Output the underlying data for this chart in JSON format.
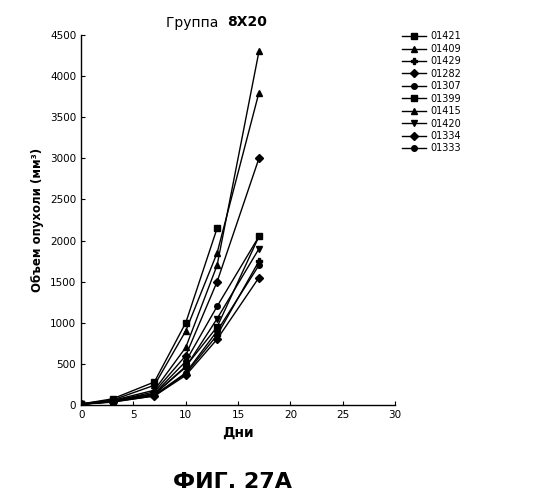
{
  "title_normal": "Группа  ",
  "title_bold": "8X20",
  "xlabel": "Дни",
  "ylabel": "Объем опухоли (мм³)",
  "fig_label": "ФИГ. 27А",
  "xlim": [
    0,
    30
  ],
  "ylim": [
    0,
    4500
  ],
  "yticks": [
    0,
    500,
    1000,
    1500,
    2000,
    2500,
    3000,
    3500,
    4000,
    4500
  ],
  "xticks": [
    0,
    5,
    10,
    15,
    20,
    25,
    30
  ],
  "series": [
    {
      "label": "01421",
      "marker": "s",
      "x": [
        0,
        3,
        7,
        10,
        13,
        17
      ],
      "y": [
        10,
        50,
        130,
        470,
        950,
        2050
      ]
    },
    {
      "label": "01409",
      "marker": "^",
      "x": [
        0,
        3,
        7,
        10,
        13,
        17
      ],
      "y": [
        12,
        55,
        180,
        700,
        1700,
        4300
      ]
    },
    {
      "label": "01429",
      "marker": "P",
      "x": [
        0,
        3,
        7,
        10,
        13,
        17
      ],
      "y": [
        10,
        40,
        110,
        380,
        850,
        1750
      ]
    },
    {
      "label": "01282",
      "marker": "D",
      "x": [
        0,
        3,
        7,
        10,
        13,
        17
      ],
      "y": [
        8,
        45,
        160,
        600,
        1500,
        3000
      ]
    },
    {
      "label": "01307",
      "marker": "o",
      "x": [
        0,
        3,
        7,
        10,
        13,
        17
      ],
      "y": [
        10,
        50,
        140,
        530,
        1200,
        2050
      ]
    },
    {
      "label": "01399",
      "marker": "s",
      "x": [
        0,
        3,
        7,
        10,
        13
      ],
      "y": [
        12,
        75,
        280,
        1000,
        2150
      ]
    },
    {
      "label": "01415",
      "marker": "^",
      "x": [
        0,
        3,
        7,
        10,
        13,
        17
      ],
      "y": [
        15,
        60,
        240,
        900,
        1850,
        3800
      ]
    },
    {
      "label": "01420",
      "marker": "v",
      "x": [
        0,
        3,
        7,
        10,
        13,
        17
      ],
      "y": [
        10,
        45,
        130,
        460,
        1050,
        1900
      ]
    },
    {
      "label": "01334",
      "marker": "D",
      "x": [
        0,
        3,
        7,
        10,
        13,
        17
      ],
      "y": [
        8,
        35,
        110,
        360,
        800,
        1550
      ]
    },
    {
      "label": "01333",
      "marker": "o",
      "x": [
        0,
        3,
        7,
        10,
        13,
        17
      ],
      "y": [
        9,
        40,
        120,
        390,
        900,
        1700
      ]
    }
  ],
  "line_color": "#000000",
  "background_color": "#ffffff"
}
